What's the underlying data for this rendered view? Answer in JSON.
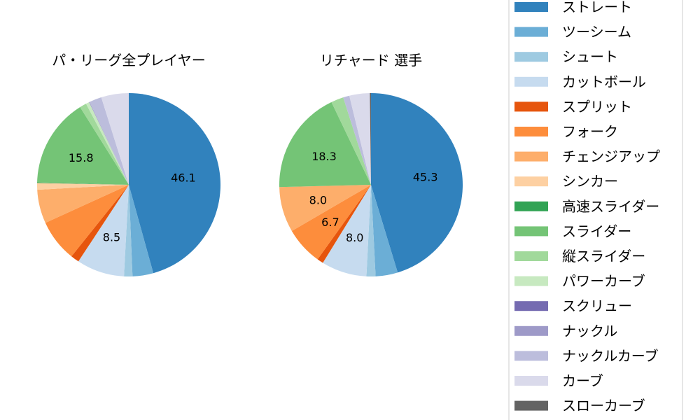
{
  "chart_data": [
    {
      "type": "pie",
      "title": "パ・リーグ全プレイヤー",
      "labels": [
        "ストレート",
        "ツーシーム",
        "シュート",
        "カットボール",
        "スプリット",
        "フォーク",
        "チェンジアップ",
        "シンカー",
        "高速スライダー",
        "スライダー",
        "縦スライダー",
        "パワーカーブ",
        "スクリュー",
        "ナックル",
        "ナックルカーブ",
        "カーブ",
        "スローカーブ"
      ],
      "values": [
        46.1,
        3.7,
        1.5,
        8.5,
        1.5,
        7.5,
        6.0,
        1.2,
        0.1,
        15.8,
        1.2,
        0.6,
        0.0,
        0.1,
        2.2,
        4.9,
        0.0
      ],
      "data_labels": [
        "46.1",
        "",
        "",
        "8.5",
        "",
        "",
        "",
        "",
        "",
        "15.8",
        "",
        "",
        "",
        "",
        "",
        "",
        ""
      ]
    },
    {
      "type": "pie",
      "title": "リチャード  選手",
      "labels": [
        "ストレート",
        "ツーシーム",
        "シュート",
        "カットボール",
        "スプリット",
        "フォーク",
        "チェンジアップ",
        "シンカー",
        "高速スライダー",
        "スライダー",
        "縦スライダー",
        "パワーカーブ",
        "スクリュー",
        "ナックル",
        "ナックルカーブ",
        "カーブ",
        "スローカーブ"
      ],
      "values": [
        45.3,
        3.9,
        1.6,
        8.0,
        1.1,
        6.7,
        8.0,
        0.0,
        0.0,
        18.3,
        2.2,
        0.0,
        0.0,
        0.0,
        1.1,
        3.6,
        0.2
      ],
      "data_labels": [
        "45.3",
        "",
        "",
        "8.0",
        "",
        "6.7",
        "8.0",
        "",
        "",
        "18.3",
        "",
        "",
        "",
        "",
        "",
        "",
        ""
      ]
    }
  ],
  "legend": {
    "items": [
      "ストレート",
      "ツーシーム",
      "シュート",
      "カットボール",
      "スプリット",
      "フォーク",
      "チェンジアップ",
      "シンカー",
      "高速スライダー",
      "スライダー",
      "縦スライダー",
      "パワーカーブ",
      "スクリュー",
      "ナックル",
      "ナックルカーブ",
      "カーブ",
      "スローカーブ"
    ],
    "colors": [
      "#3182bd",
      "#6baed6",
      "#9ecae1",
      "#c6dbef",
      "#e6550d",
      "#fd8d3c",
      "#fdae6b",
      "#fdd0a2",
      "#31a354",
      "#74c476",
      "#a1d99b",
      "#c7e9c0",
      "#756bb1",
      "#9e9ac8",
      "#bcbddc",
      "#dadaeb",
      "#636363"
    ]
  }
}
